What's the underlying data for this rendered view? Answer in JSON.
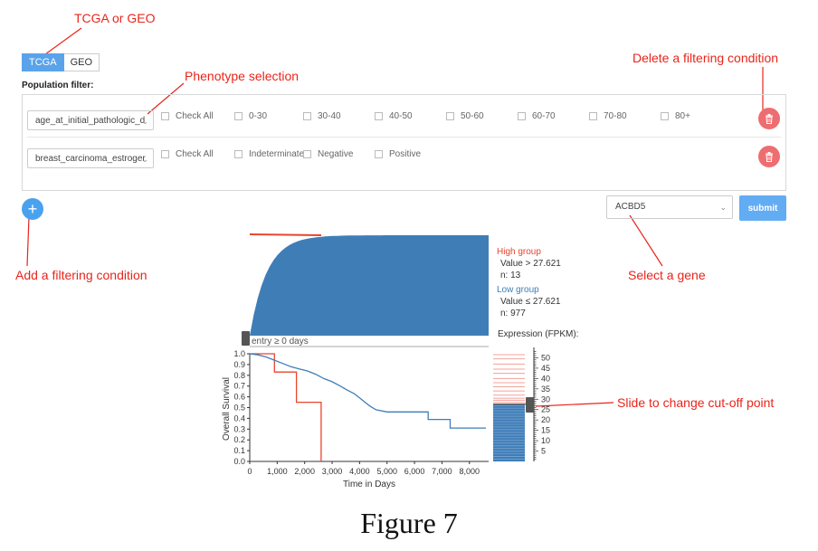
{
  "annotations": {
    "tcga_or_geo": "TCGA or GEO",
    "phenotype_selection": "Phenotype selection",
    "delete_filter": "Delete a filtering condition",
    "add_filter": "Add a filtering condition",
    "select_gene": "Select a gene",
    "slide_cutoff": "Slide to change cut-off point"
  },
  "tabs": {
    "tcga": "TCGA",
    "geo": "GEO"
  },
  "population_filter_label": "Population filter:",
  "filters": [
    {
      "phenotype": "age_at_initial_pathologic_d",
      "check_all": "Check All",
      "options": [
        "0-30",
        "30-40",
        "40-50",
        "50-60",
        "60-70",
        "70-80",
        "80+"
      ]
    },
    {
      "phenotype": "breast_carcinoma_estroger",
      "check_all": "Check All",
      "options": [
        "Indeterminate",
        "Negative",
        "Positive"
      ]
    }
  ],
  "add_button": "+",
  "gene_select": {
    "value": "ACBD5"
  },
  "submit_label": "submit",
  "plot": {
    "entry_label": "entry ≥ 0 days",
    "high_group": {
      "label": "High group",
      "value": "Value > 27.621",
      "n": "n: 13"
    },
    "low_group": {
      "label": "Low group",
      "value": "Value ≤ 27.621",
      "n": "n: 977"
    },
    "expression_label": "Expression (FPKM):",
    "cutoff": 27.621,
    "colors": {
      "high": "#e8452c",
      "low": "#3f7db7"
    }
  },
  "chart_data": {
    "type": "line",
    "xlabel": "Time in Days",
    "ylabel": "Overall Survival",
    "xlim": [
      0,
      8700
    ],
    "ylim": [
      0,
      1.0
    ],
    "x_ticks": [
      0,
      1000,
      2000,
      3000,
      4000,
      5000,
      6000,
      7000,
      8000
    ],
    "x_tick_labels": [
      "0",
      "1,000",
      "2,000",
      "3,000",
      "4,000",
      "5,000",
      "6,000",
      "7,000",
      "8,000"
    ],
    "y_ticks": [
      0,
      0.1,
      0.2,
      0.3,
      0.4,
      0.5,
      0.6,
      0.7,
      0.8,
      0.9,
      1.0
    ],
    "y_tick_labels": [
      "0.0",
      "0.1",
      "0.2",
      "0.3",
      "0.4",
      "0.5",
      "0.6",
      "0.7",
      "0.8",
      "0.9",
      "1.0"
    ],
    "series": [
      {
        "name": "High group",
        "color": "#e8452c",
        "x": [
          0,
          900,
          900,
          1700,
          1700,
          2600,
          2600
        ],
        "y": [
          1.0,
          1.0,
          0.83,
          0.83,
          0.55,
          0.55,
          0.0
        ]
      },
      {
        "name": "Low group",
        "color": "#3f7db7",
        "x": [
          0,
          300,
          600,
          900,
          1200,
          1500,
          1800,
          2100,
          2400,
          2700,
          3000,
          3300,
          3500,
          3800,
          4000,
          4200,
          4400,
          4600,
          5000,
          5500,
          6200,
          6500,
          6500,
          7000,
          7300,
          7300,
          8000,
          8600
        ],
        "y": [
          1.0,
          0.99,
          0.97,
          0.94,
          0.91,
          0.88,
          0.86,
          0.84,
          0.81,
          0.77,
          0.74,
          0.7,
          0.67,
          0.63,
          0.59,
          0.55,
          0.51,
          0.48,
          0.46,
          0.46,
          0.46,
          0.46,
          0.39,
          0.39,
          0.39,
          0.31,
          0.31,
          0.31
        ]
      }
    ],
    "expression_axis": {
      "ticks": [
        5,
        10,
        15,
        20,
        25,
        30,
        35,
        40,
        45,
        50
      ],
      "range": [
        0,
        55
      ]
    }
  },
  "figure_caption": "Figure 7"
}
